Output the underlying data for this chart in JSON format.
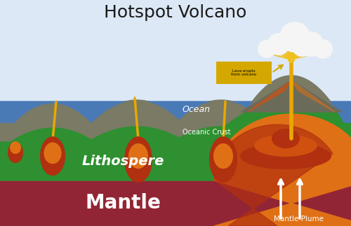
{
  "title": "Hotspot Volcano",
  "title_fontsize": 18,
  "title_color": "#1a1a1a",
  "bg_sky": "#dce8f5",
  "bg_ocean": "#4a7ab5",
  "bg_oceanic_crust": "#7a7a65",
  "bg_lithosphere": "#2e9030",
  "bg_mantle": "#922535",
  "label_ocean": "Ocean",
  "label_oceanic_crust": "Oceanic Crust",
  "label_lithosphere": "Lithospere",
  "label_mantle": "Mantle",
  "label_mantle_plume": "Mantle Plume",
  "label_lava": "Lava erupts\nfrom volcano",
  "volcano_gray": "#6b6b5a",
  "magma_orange": "#e07015",
  "magma_orange2": "#d05010",
  "magma_dark": "#b03010",
  "lava_yellow": "#f0c020",
  "lava_gold": "#e8a800",
  "cloud_color": "#f5f5f5",
  "label_box_color": "#d4a800",
  "arrow_color": "#d4a800"
}
